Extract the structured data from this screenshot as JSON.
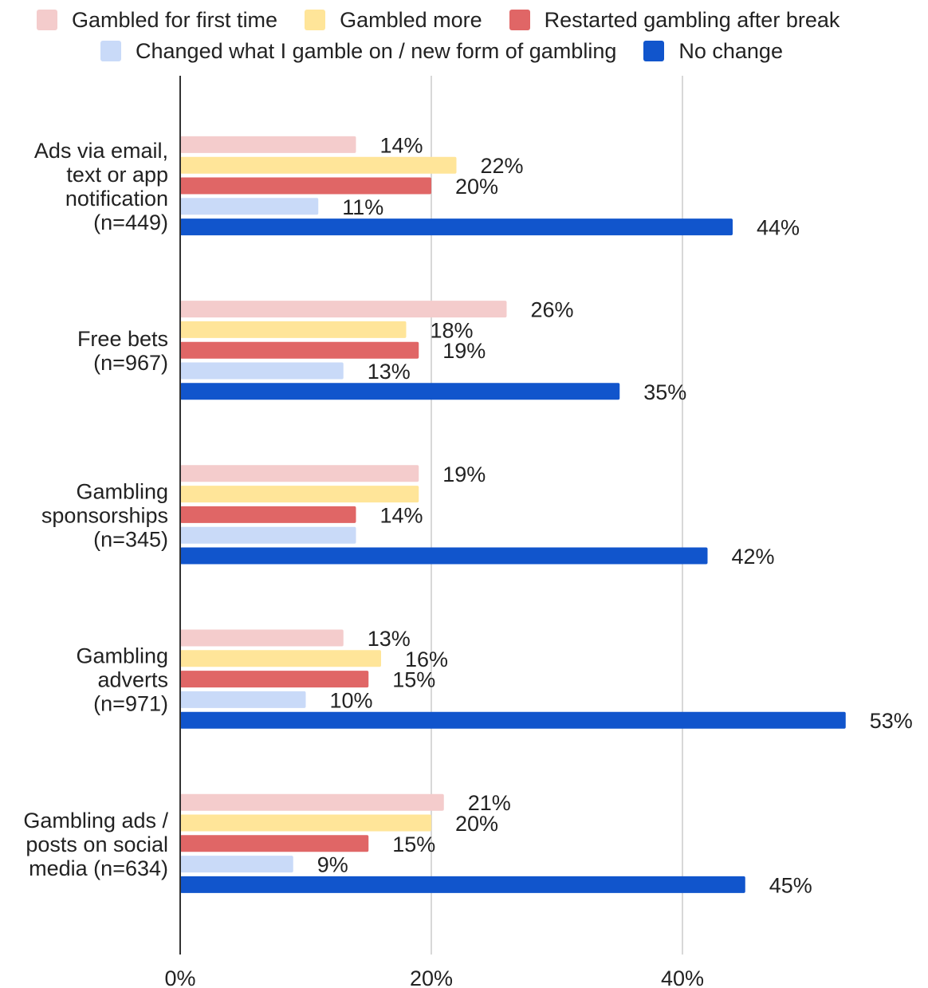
{
  "chart_data": {
    "type": "bar",
    "orientation": "horizontal",
    "categories": [
      [
        "Ads via email,",
        "text or app",
        "notification",
        "(n=449)"
      ],
      [
        "Free bets",
        "(n=967)"
      ],
      [
        "Gambling",
        "sponsorships",
        "(n=345)"
      ],
      [
        "Gambling",
        "adverts",
        "(n=971)"
      ],
      [
        "Gambling ads /",
        "posts on social",
        "media (n=634)"
      ]
    ],
    "series": [
      {
        "name": "Gambled for first time",
        "color": "#f4cccc",
        "values": [
          14,
          26,
          19,
          13,
          21
        ],
        "labels": [
          "14%",
          "26%",
          "19%",
          "13%",
          "21%"
        ]
      },
      {
        "name": "Gambled more",
        "color": "#ffe599",
        "values": [
          22,
          18,
          19,
          16,
          20
        ],
        "labels": [
          "22%",
          "18%",
          "",
          "16%",
          "20%"
        ]
      },
      {
        "name": "Restarted gambling after break",
        "color": "#e06666",
        "values": [
          20,
          19,
          14,
          15,
          15
        ],
        "labels": [
          "20%",
          "19%",
          "14%",
          "15%",
          "15%"
        ]
      },
      {
        "name": "Changed what I gamble on / new form of gambling",
        "color": "#c9daf8",
        "values": [
          11,
          13,
          14,
          10,
          9
        ],
        "labels": [
          "11%",
          "13%",
          "",
          "10%",
          "9%"
        ]
      },
      {
        "name": "No change",
        "color": "#1155cc",
        "values": [
          44,
          35,
          42,
          53,
          45
        ],
        "labels": [
          "44%",
          "35%",
          "42%",
          "53%",
          "45%"
        ]
      }
    ],
    "x_ticks": [
      "0%",
      "20%",
      "40%"
    ],
    "xlim": [
      0,
      59
    ],
    "grid": true,
    "legend_position": "top"
  },
  "legend_rows": [
    [
      0,
      1,
      2
    ],
    [
      3,
      4
    ]
  ]
}
